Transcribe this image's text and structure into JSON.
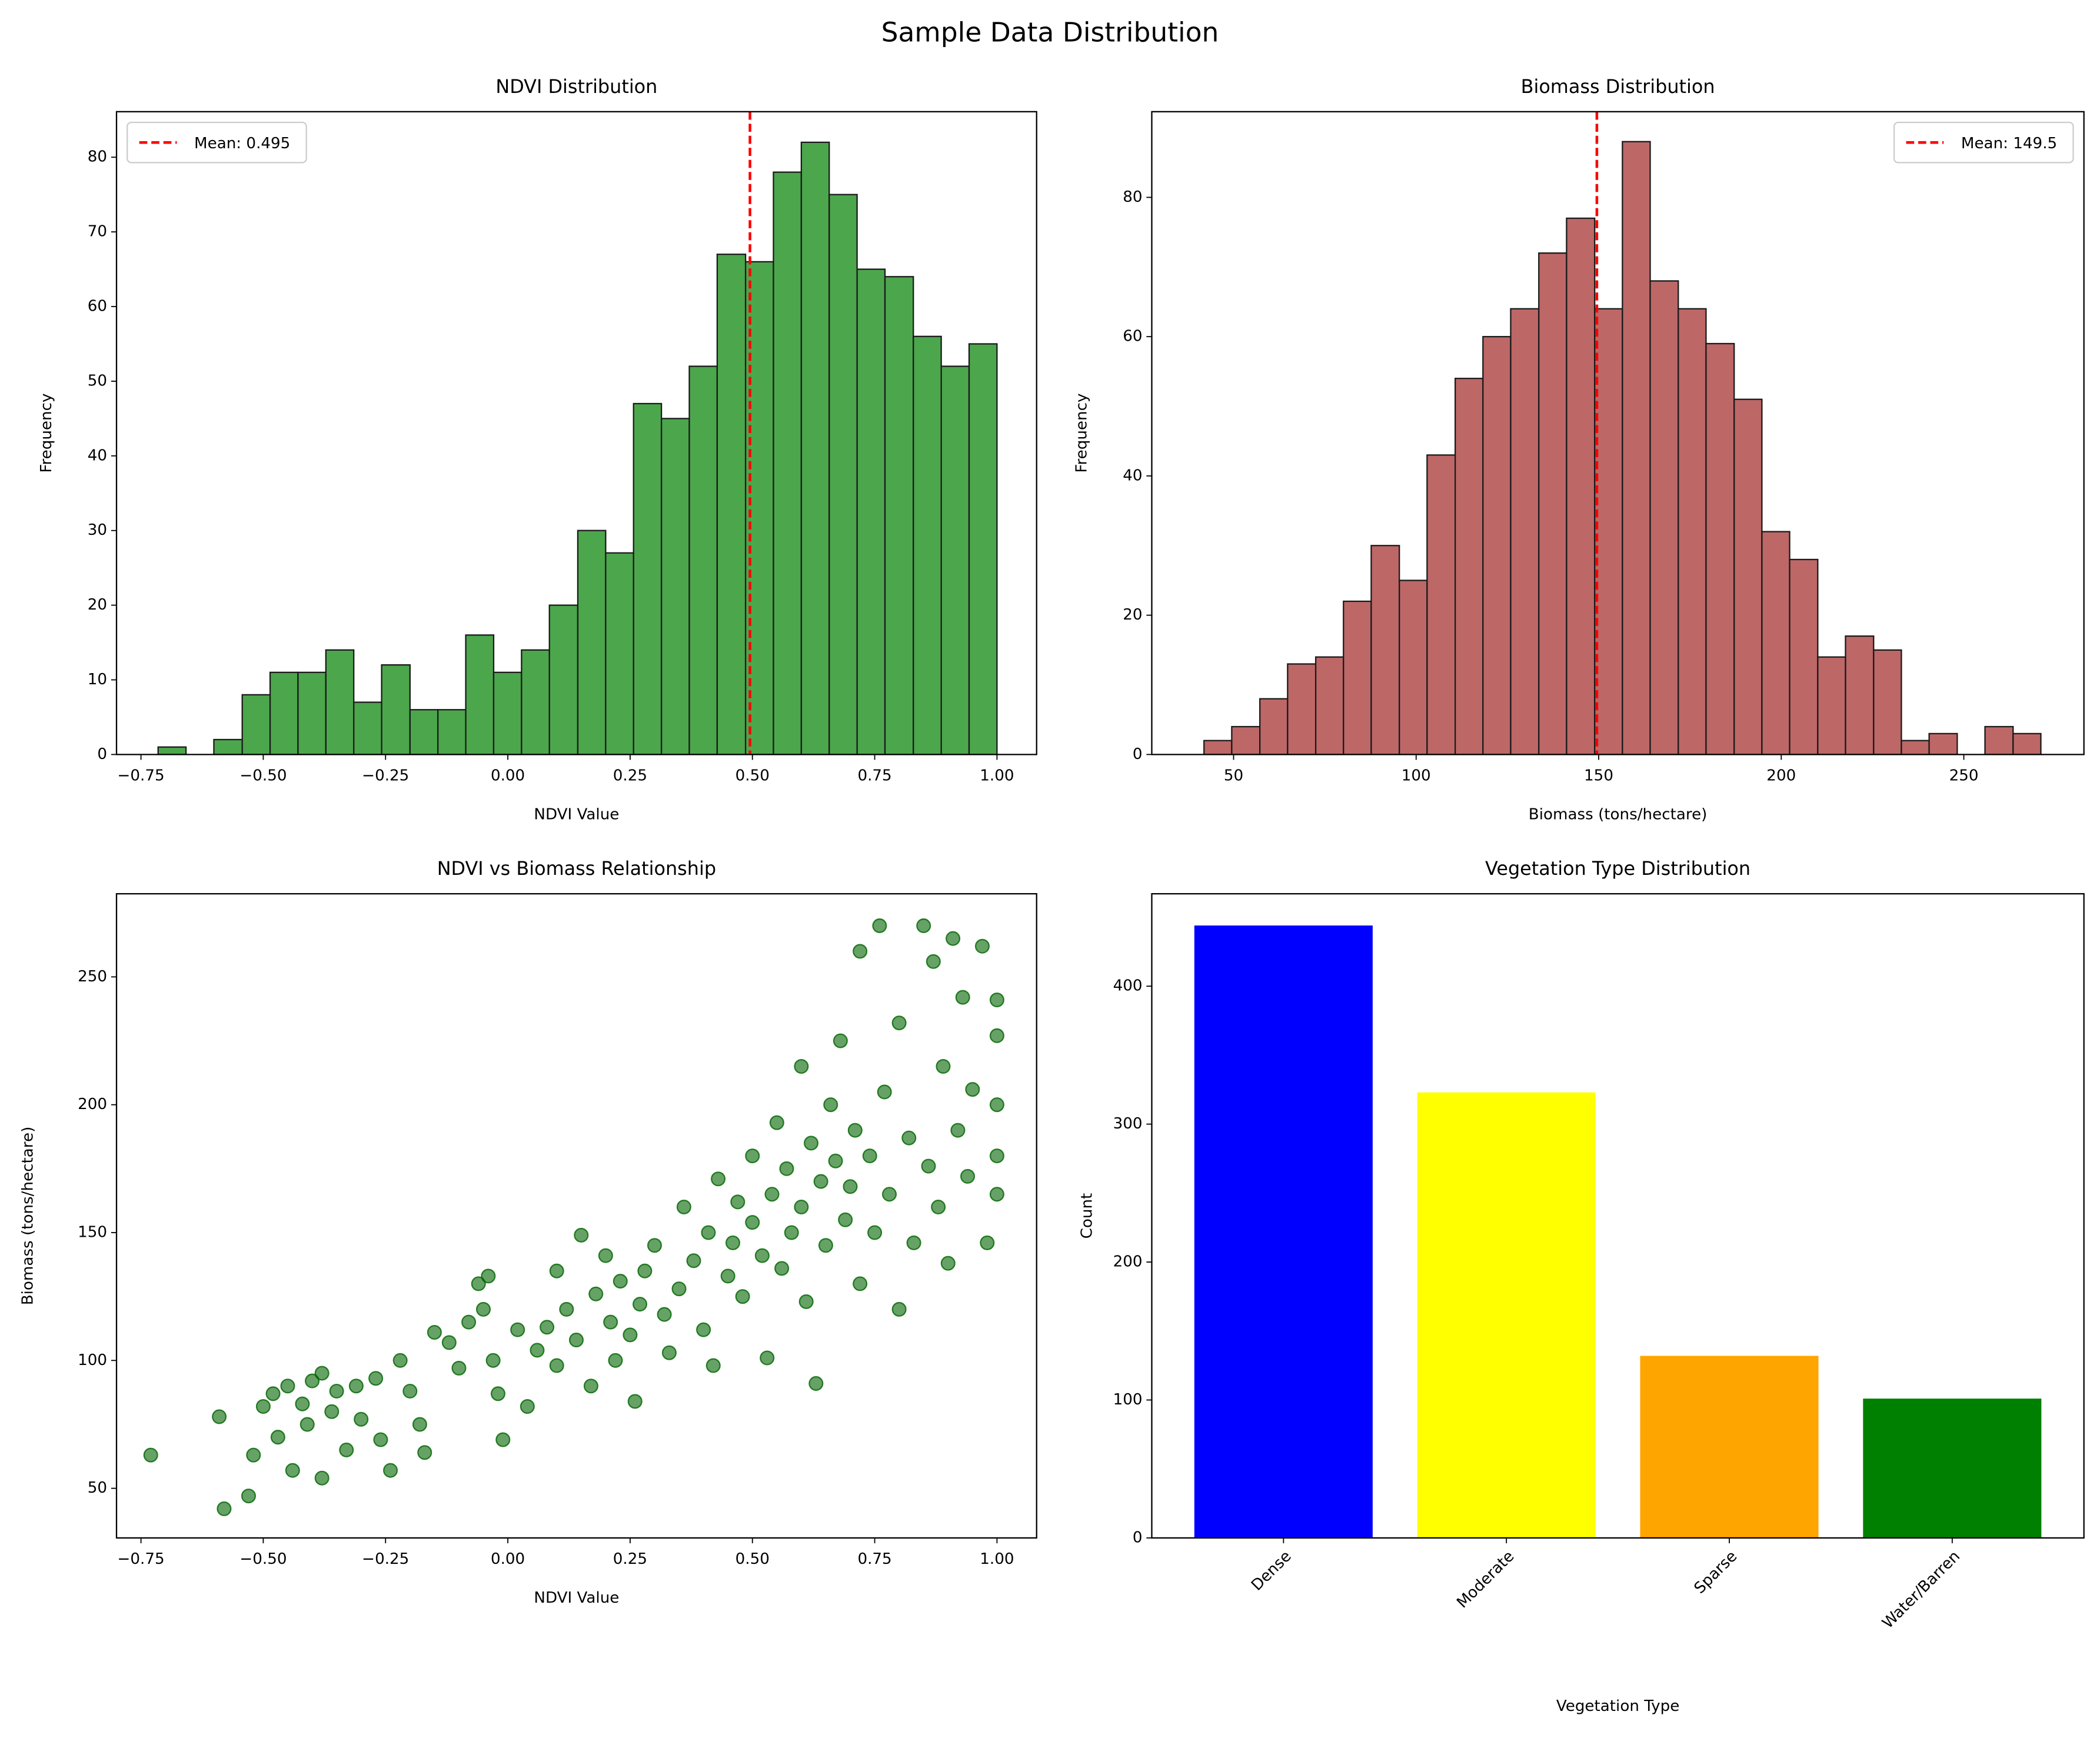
{
  "title": "Sample Data Distribution",
  "chart_data": [
    {
      "type": "histogram",
      "title": "NDVI Distribution",
      "x_label": "NDVI Value",
      "y_label": "Frequency",
      "color": "#4ca64c",
      "edge_color": "#1a1a1a",
      "bins": [
        -0.715,
        -0.658,
        -0.601,
        -0.543,
        -0.486,
        -0.429,
        -0.372,
        -0.315,
        -0.258,
        -0.2,
        -0.143,
        -0.086,
        -0.029,
        0.028,
        0.085,
        0.143,
        0.2,
        0.257,
        0.314,
        0.371,
        0.428,
        0.486,
        0.543,
        0.6,
        0.657,
        0.714,
        0.771,
        0.829,
        0.886,
        0.943,
        1.0
      ],
      "values": [
        1,
        0,
        2,
        8,
        11,
        11,
        14,
        7,
        12,
        6,
        6,
        16,
        11,
        14,
        20,
        30,
        27,
        47,
        45,
        52,
        67,
        66,
        78,
        82,
        75,
        65,
        64,
        56,
        52,
        55
      ],
      "mean_line": {
        "value": 0.495,
        "label": "Mean: 0.495",
        "color": "#ff0000"
      },
      "legend": "upper left",
      "xlim": [
        -0.8,
        1.081
      ],
      "ylim": [
        0,
        86.1
      ],
      "xticks": [
        {
          "value": -0.75,
          "label": "−0.75"
        },
        {
          "value": -0.5,
          "label": "−0.50"
        },
        {
          "value": -0.25,
          "label": "−0.25"
        },
        {
          "value": 0,
          "label": "0.00"
        },
        {
          "value": 0.25,
          "label": "0.25"
        },
        {
          "value": 0.5,
          "label": "0.50"
        },
        {
          "value": 0.75,
          "label": "0.75"
        },
        {
          "value": 1,
          "label": "1.00"
        }
      ],
      "yticks": [
        0,
        10,
        20,
        30,
        40,
        50,
        60,
        70,
        80
      ]
    },
    {
      "type": "histogram",
      "title": "Biomass Distribution",
      "x_label": "Biomass (tons/hectare)",
      "y_label": "Frequency",
      "color": "#bd6767",
      "edge_color": "#1a1a1a",
      "bins": [
        41.9,
        49.5,
        57.2,
        64.8,
        72.5,
        80.1,
        87.7,
        95.4,
        103.0,
        110.7,
        118.3,
        125.9,
        133.6,
        141.2,
        148.9,
        156.5,
        164.1,
        171.8,
        179.4,
        187.1,
        194.7,
        202.3,
        210.0,
        217.6,
        225.3,
        232.9,
        240.5,
        248.2,
        255.8,
        263.5,
        271.1
      ],
      "values": [
        2,
        4,
        8,
        13,
        14,
        22,
        30,
        25,
        43,
        54,
        60,
        64,
        72,
        77,
        64,
        88,
        68,
        64,
        59,
        51,
        32,
        28,
        14,
        17,
        15,
        2,
        3,
        0,
        4,
        3
      ],
      "mean_line": {
        "value": 149.5,
        "label": "Mean: 149.5",
        "color": "#ff0000"
      },
      "legend": "upper right",
      "xlim": [
        27.6,
        282.9
      ],
      "ylim": [
        0,
        92.3
      ],
      "xticks": [
        50,
        100,
        150,
        200,
        250
      ],
      "yticks": [
        0,
        20,
        40,
        60,
        80
      ]
    },
    {
      "type": "scatter",
      "title": "NDVI vs Biomass Relationship",
      "x_label": "NDVI Value",
      "y_label": "Biomass (tons/hectare)",
      "color": "#006400",
      "x": [
        -0.73,
        -0.58,
        -0.59,
        -0.53,
        -0.52,
        -0.5,
        -0.48,
        -0.47,
        -0.45,
        -0.44,
        -0.42,
        -0.41,
        -0.4,
        -0.38,
        -0.38,
        -0.36,
        -0.35,
        -0.33,
        -0.31,
        -0.3,
        -0.27,
        -0.26,
        -0.24,
        -0.22,
        -0.2,
        -0.18,
        -0.17,
        -0.15,
        -0.12,
        -0.1,
        -0.08,
        -0.06,
        -0.05,
        -0.04,
        -0.03,
        -0.02,
        -0.01,
        0.02,
        0.04,
        0.06,
        0.08,
        0.1,
        0.1,
        0.12,
        0.14,
        0.15,
        0.17,
        0.18,
        0.2,
        0.21,
        0.22,
        0.23,
        0.25,
        0.26,
        0.27,
        0.28,
        0.3,
        0.32,
        0.33,
        0.35,
        0.36,
        0.38,
        0.4,
        0.41,
        0.42,
        0.43,
        0.45,
        0.46,
        0.47,
        0.48,
        0.5,
        0.5,
        0.52,
        0.53,
        0.54,
        0.55,
        0.56,
        0.57,
        0.58,
        0.6,
        0.6,
        0.61,
        0.62,
        0.63,
        0.64,
        0.65,
        0.66,
        0.67,
        0.68,
        0.69,
        0.7,
        0.71,
        0.72,
        0.72,
        0.74,
        0.75,
        0.76,
        0.77,
        0.78,
        0.8,
        0.8,
        0.82,
        0.83,
        0.85,
        0.86,
        0.87,
        0.88,
        0.89,
        0.9,
        0.91,
        0.92,
        0.93,
        0.94,
        0.95,
        0.97,
        0.98,
        1.0,
        1.0,
        1.0,
        1.0,
        1.0
      ],
      "values": [
        63,
        42,
        78,
        47,
        63,
        82,
        87,
        70,
        90,
        57,
        83,
        75,
        92,
        95,
        54,
        80,
        88,
        65,
        90,
        77,
        93,
        69,
        57,
        100,
        88,
        75,
        64,
        111,
        107,
        97,
        115,
        130,
        120,
        133,
        100,
        87,
        69,
        112,
        82,
        104,
        113,
        98,
        135,
        120,
        108,
        149,
        90,
        126,
        141,
        115,
        100,
        131,
        110,
        84,
        122,
        135,
        145,
        118,
        103,
        128,
        160,
        139,
        112,
        150,
        98,
        171,
        133,
        146,
        162,
        125,
        154,
        180,
        141,
        101,
        165,
        193,
        136,
        175,
        150,
        160,
        215,
        123,
        185,
        91,
        170,
        145,
        200,
        178,
        225,
        155,
        168,
        190,
        260,
        130,
        180,
        150,
        270,
        205,
        165,
        232,
        120,
        187,
        146,
        270,
        176,
        256,
        160,
        215,
        138,
        265,
        190,
        242,
        172,
        206,
        262,
        146,
        241,
        227,
        200,
        180,
        165
      ],
      "xlim": [
        -0.8,
        1.081
      ],
      "ylim": [
        30.6,
        282.5
      ],
      "xticks": [
        {
          "value": -0.75,
          "label": "−0.75"
        },
        {
          "value": -0.5,
          "label": "−0.50"
        },
        {
          "value": -0.25,
          "label": "−0.25"
        },
        {
          "value": 0,
          "label": "0.00"
        },
        {
          "value": 0.25,
          "label": "0.25"
        },
        {
          "value": 0.5,
          "label": "0.50"
        },
        {
          "value": 0.75,
          "label": "0.75"
        },
        {
          "value": 1,
          "label": "1.00"
        }
      ],
      "yticks": [
        50,
        100,
        150,
        200,
        250
      ]
    },
    {
      "type": "bar",
      "title": "Vegetation Type Distribution",
      "x_label": "Vegetation Type",
      "y_label": "Count",
      "categories": [
        "Dense",
        "Moderate",
        "Sparse",
        "Water/Barren"
      ],
      "values": [
        444,
        323,
        132,
        101
      ],
      "colors": [
        "#0000ff",
        "#ffff00",
        "#ffa500",
        "#008000"
      ],
      "ylim": [
        0,
        467
      ],
      "yticks": [
        0,
        100,
        200,
        300,
        400
      ]
    }
  ]
}
